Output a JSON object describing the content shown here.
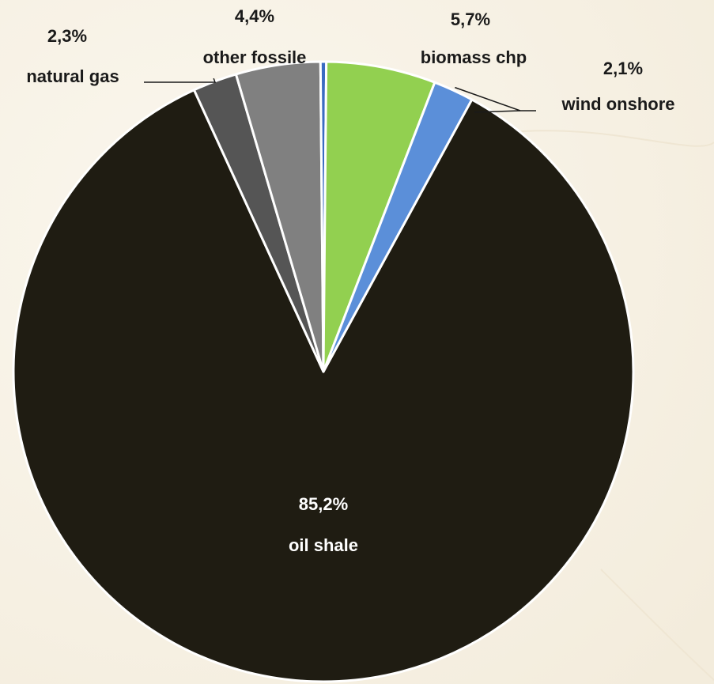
{
  "chart_data": {
    "type": "pie",
    "slices": [
      {
        "label": "oil shale",
        "value": 85.2,
        "value_label": "85,2%",
        "color": "#1f1c12"
      },
      {
        "label": "natural gas",
        "value": 2.3,
        "value_label": "2,3%",
        "color": "#555555"
      },
      {
        "label": "other fossile",
        "value": 4.4,
        "value_label": "4,4%",
        "color": "#808080"
      },
      {
        "label": "",
        "value": 0.3,
        "value_label": "",
        "color": "#3a6bc2"
      },
      {
        "label": "biomass chp",
        "value": 5.7,
        "value_label": "5,7%",
        "color": "#92d050"
      },
      {
        "label": "wind onshore",
        "value": 2.1,
        "value_label": "2,1%",
        "color": "#5b8fd9"
      }
    ]
  }
}
